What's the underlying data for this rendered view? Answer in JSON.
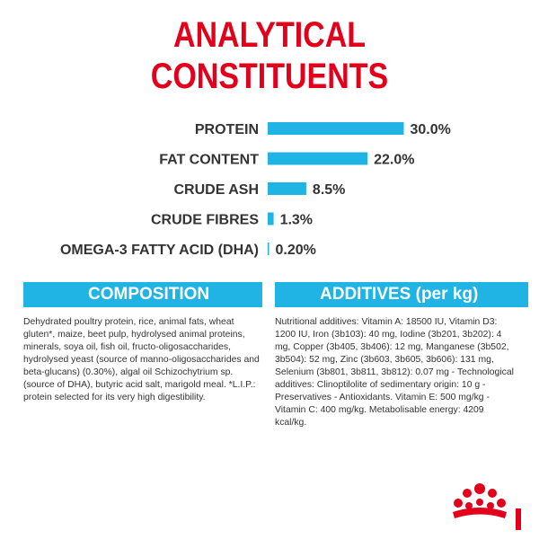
{
  "title_line1": "ANALYTICAL",
  "title_line2": "CONSTITUENTS",
  "colors": {
    "title": "#e2001a",
    "bar": "#1fb4e3",
    "text": "#333333",
    "logo": "#e2001a"
  },
  "chart_data": {
    "type": "bar",
    "orientation": "horizontal",
    "categories": [
      "PROTEIN",
      "FAT CONTENT",
      "CRUDE ASH",
      "CRUDE FIBRES",
      "OMEGA-3 FATTY ACID (DHA)"
    ],
    "values": [
      30.0,
      22.0,
      8.5,
      1.3,
      0.2
    ],
    "value_labels": [
      "30.0%",
      "22.0%",
      "8.5%",
      "1.3%",
      "0.20%"
    ],
    "unit": "%",
    "grid": false
  },
  "composition": {
    "header": "COMPOSITION",
    "text": "Dehydrated poultry protein, rice, animal fats, wheat gluten*, maize, beet pulp, hydrolysed animal proteins, minerals, soya oil, fish oil, fructo-oligosaccharides, hydrolysed yeast (source of manno-oligosaccharides and beta-glucans) (0.30%), algal oil Schizochytrium sp. (source of DHA), butyric acid salt, marigold meal. *L.I.P.: protein selected for its very high digestibility."
  },
  "additives": {
    "header": "ADDITIVES (per kg)",
    "text": "Nutritional additives: Vitamin A: 18500 IU, Vitamin D3: 1200 IU, Iron (3b103): 40 mg, Iodine (3b201, 3b202): 4 mg, Copper (3b405, 3b406): 12 mg, Manganese (3b502, 3b504): 52 mg, Zinc (3b603, 3b605, 3b606): 131 mg, Selenium (3b801, 3b811, 3b812): 0.07 mg - Technological additives: Clinoptilolite of sedimentary origin: 10 g - Preservatives - Antioxidants. Vitamin E: 500 mg/kg - Vitamin C: 400 mg/kg. Metabolisable energy: 4209 kcal/kg."
  },
  "logo": {
    "name": "royal-canin-crown-logo"
  }
}
